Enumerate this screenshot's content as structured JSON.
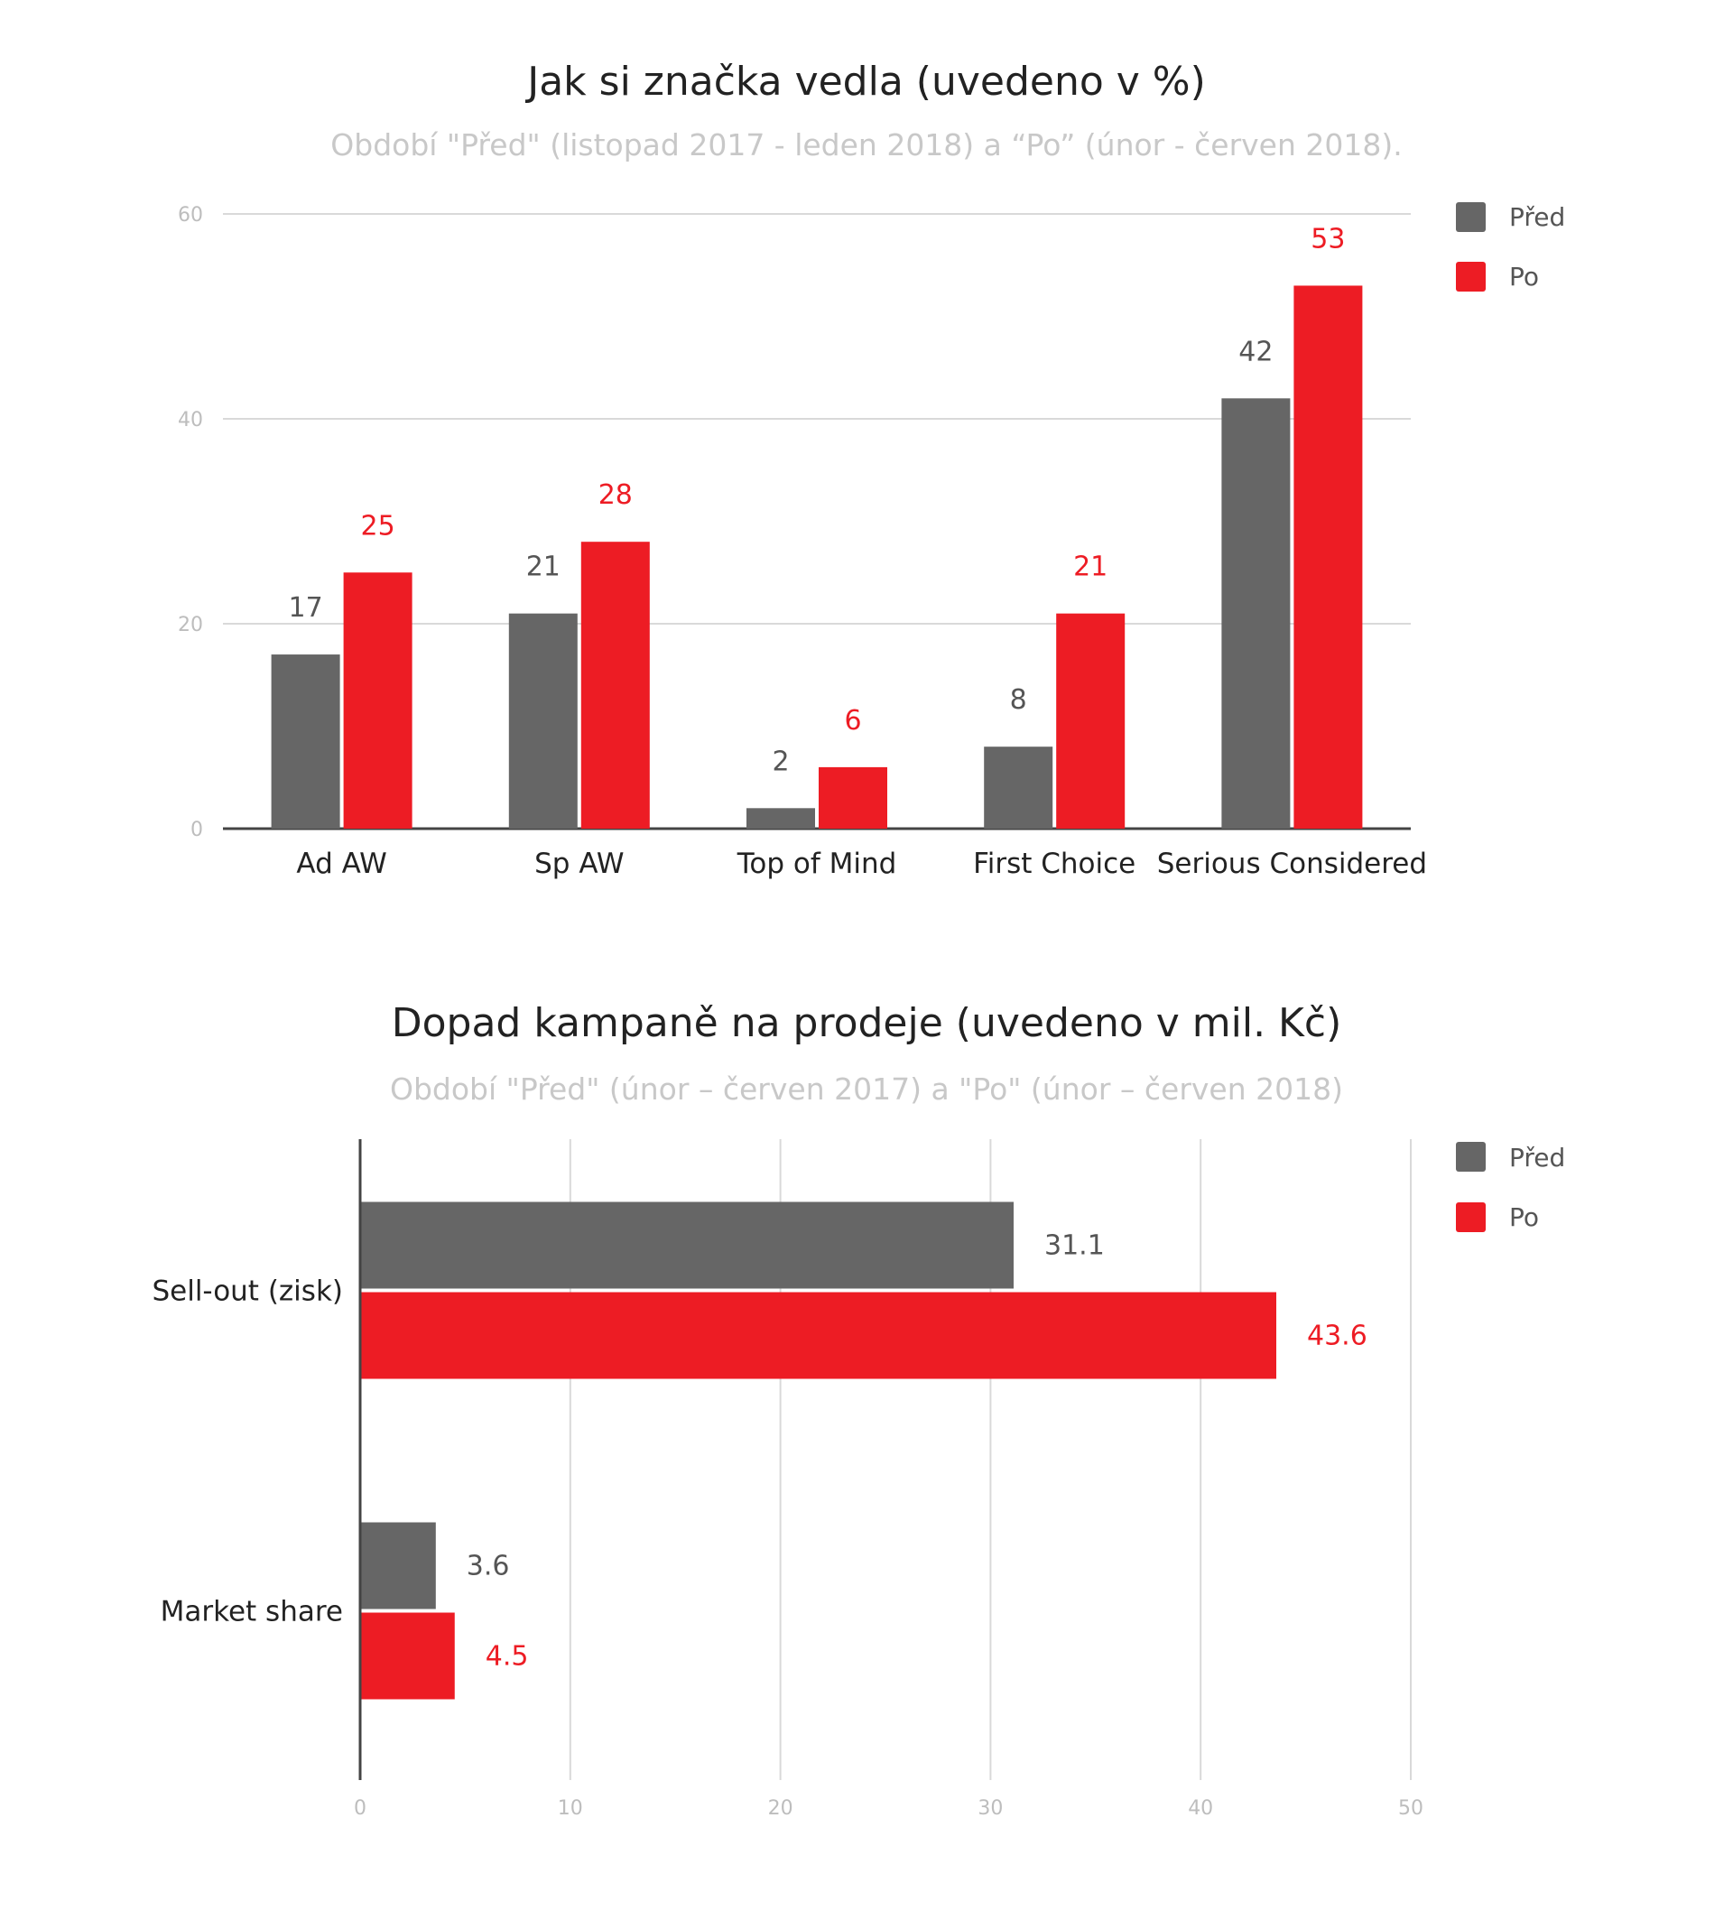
{
  "chart_data": [
    {
      "type": "bar",
      "orientation": "vertical",
      "title": "Jak si značka vedla (uvedeno v %)",
      "subtitle": "Období \"Před\" (listopad 2017 - leden 2018) a “Po” (únor - červen 2018).",
      "categories": [
        "Ad AW",
        "Sp AW",
        "Top of Mind",
        "First Choice",
        "Serious Considered"
      ],
      "series": [
        {
          "name": "Před",
          "color": "#666666",
          "label_color": "#555555",
          "values": [
            17,
            21,
            2,
            8,
            42
          ]
        },
        {
          "name": "Po",
          "color": "#ed1c24",
          "label_color": "#ed1c24",
          "values": [
            25,
            28,
            6,
            21,
            53
          ]
        }
      ],
      "ylim": [
        0,
        60
      ],
      "yticks": [
        "0",
        "20",
        "40",
        "60"
      ],
      "grid": true,
      "legend_position": "right"
    },
    {
      "type": "bar",
      "orientation": "horizontal",
      "title": "Dopad kampaně na prodeje (uvedeno v mil. Kč)",
      "subtitle": "Období \"Před\" (únor – červen 2017) a \"Po\" (únor – červen 2018)",
      "categories": [
        "Sell-out (zisk)",
        "Market share"
      ],
      "series": [
        {
          "name": "Před",
          "color": "#666666",
          "label_color": "#555555",
          "values": [
            31.1,
            3.6
          ],
          "labels": [
            "31.1",
            "3.6"
          ]
        },
        {
          "name": "Po",
          "color": "#ed1c24",
          "label_color": "#ed1c24",
          "values": [
            43.6,
            4.5
          ],
          "labels": [
            "43.6",
            "4.5"
          ]
        }
      ],
      "xlim": [
        0,
        50
      ],
      "xticks": [
        "0",
        "10",
        "20",
        "30",
        "40",
        "50"
      ],
      "grid": true,
      "legend_position": "right"
    }
  ]
}
